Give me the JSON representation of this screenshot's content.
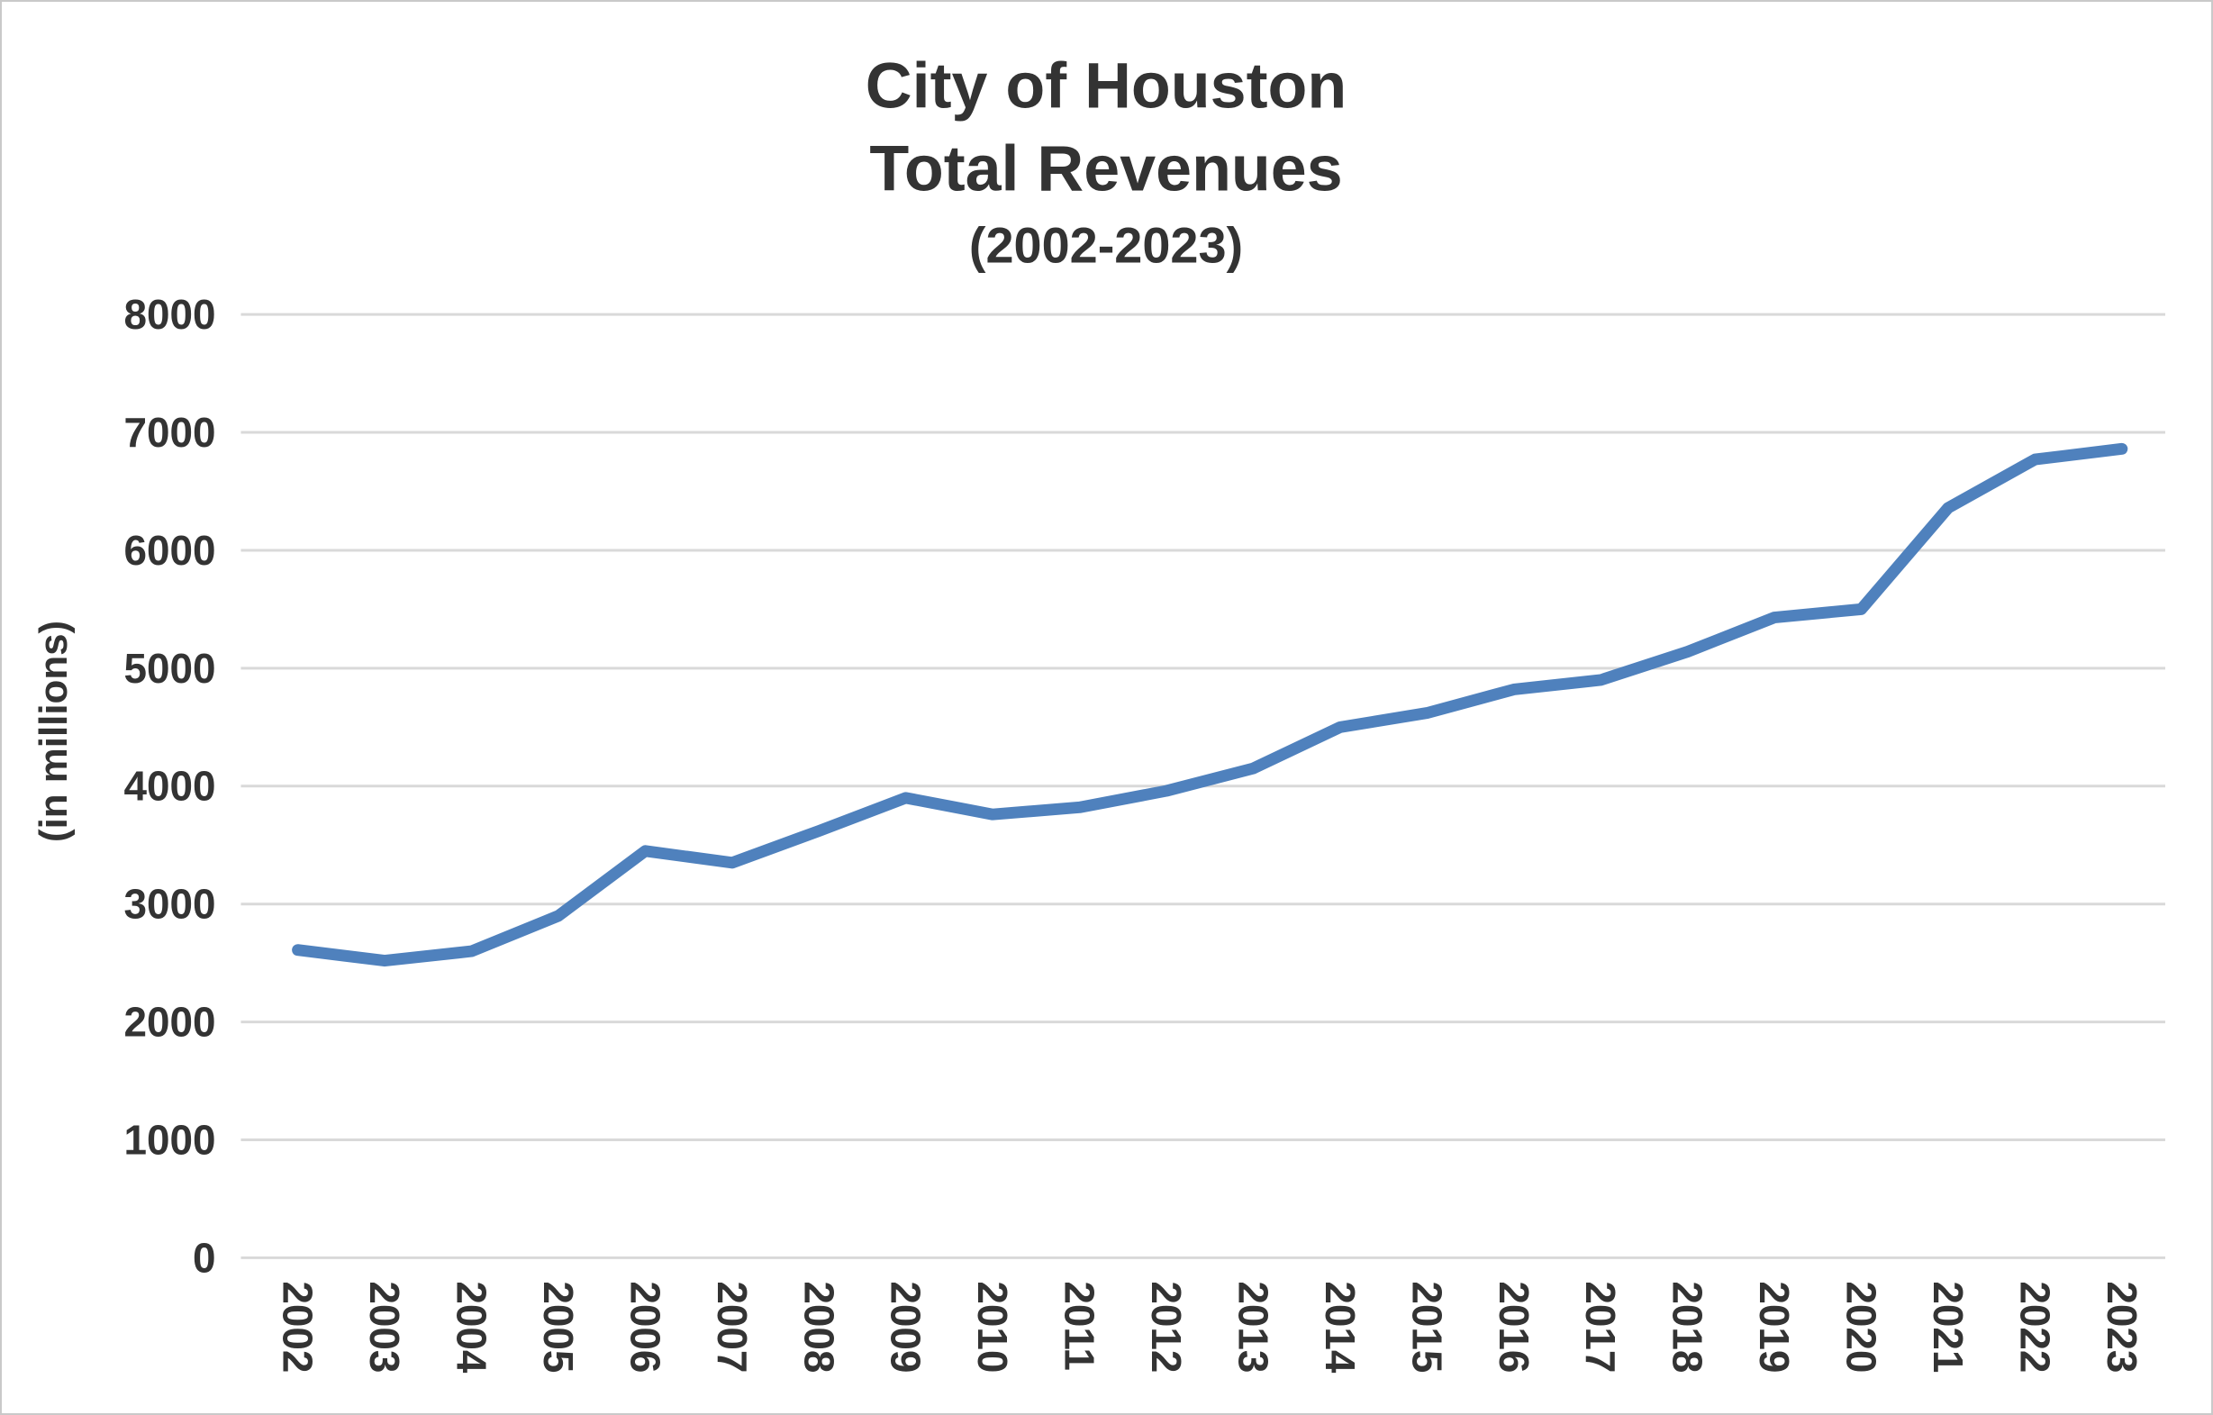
{
  "chart_data": {
    "type": "line",
    "title": "City of Houston",
    "subtitle": "Total Revenues",
    "period": "(2002-2023)",
    "ylabel": "(in millions)",
    "categories": [
      "2002",
      "2003",
      "2004",
      "2005",
      "2006",
      "2007",
      "2008",
      "2009",
      "2010",
      "2011",
      "2012",
      "2013",
      "2014",
      "2015",
      "2016",
      "2017",
      "2018",
      "2019",
      "2020",
      "2021",
      "2022",
      "2023"
    ],
    "series": [
      {
        "name": "Total Revenues",
        "values": [
          2610,
          2520,
          2600,
          2900,
          3450,
          3350,
          3620,
          3900,
          3760,
          3820,
          3960,
          4150,
          4500,
          4620,
          4820,
          4900,
          5140,
          5430,
          5500,
          6360,
          6770,
          6860
        ]
      }
    ],
    "ylim": [
      0,
      8000
    ],
    "ytick_step": 1000,
    "ytick_labels": [
      "0",
      "1000",
      "2000",
      "3000",
      "4000",
      "5000",
      "6000",
      "7000",
      "8000"
    ],
    "grid": "horizontal",
    "legend_position": "none",
    "line_color": "#4F81BD",
    "grid_color": "#D9D9D9",
    "text_color": "#333333",
    "background_color": "#FFFFFF",
    "border_color": "#C9C9C9"
  }
}
